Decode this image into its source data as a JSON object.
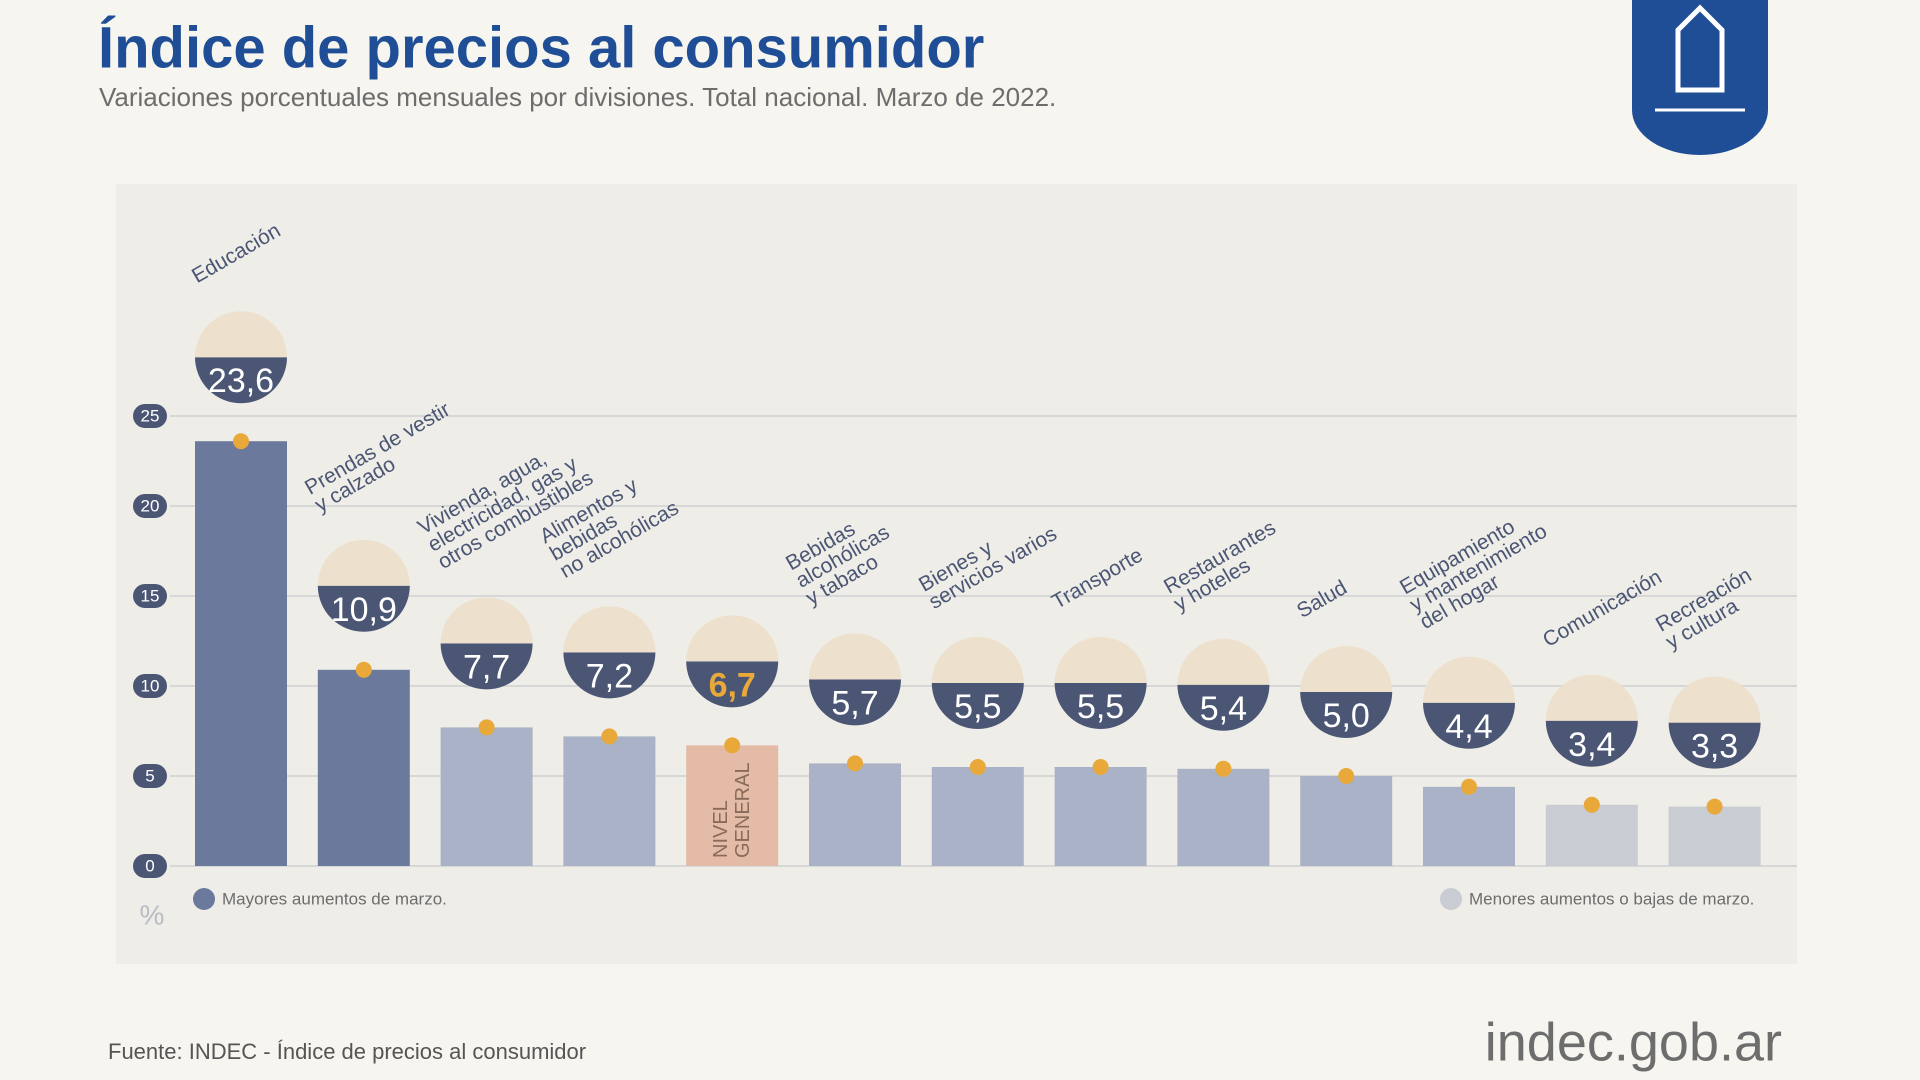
{
  "chart_data": {
    "type": "bar",
    "title": "Índice de precios al consumidor",
    "subtitle": "Variaciones porcentuales mensuales por divisiones. Total nacional. Marzo de 2022.",
    "categories": [
      "Educación",
      "Prendas de vestir\ny calzado",
      "Vivienda, agua,\nelectricidad, gas y\notros combustibles",
      "Alimentos y\nbebidas\nno alcohólicas",
      "NIVEL\nGENERAL",
      "Bebidas\nalcohólicas\ny tabaco",
      "Bienes y\nservicios varios",
      "Transporte",
      "Restaurantes\ny hoteles",
      "Salud",
      "Equipamiento\ny mantenimiento\ndel hogar",
      "Comunicación",
      "Recreación\ny cultura"
    ],
    "values": [
      23.6,
      10.9,
      7.7,
      7.2,
      6.7,
      5.7,
      5.5,
      5.5,
      5.4,
      5.0,
      4.4,
      3.4,
      3.3
    ],
    "value_labels": [
      "23,6",
      "10,9",
      "7,7",
      "7,2",
      "6,7",
      "5,7",
      "5,5",
      "5,5",
      "5,4",
      "5,0",
      "4,4",
      "3,4",
      "3,3"
    ],
    "colors": [
      "#6b7a9c",
      "#6b7a9c",
      "#a9b2c6",
      "#a9b2c6",
      "#e3bba7",
      "#a9b2c6",
      "#a9b2c6",
      "#a9b2c6",
      "#a9b2c6",
      "#a9b2c6",
      "#a9b2c6",
      "#c9ccd3",
      "#c9ccd3"
    ],
    "ylim": [
      0,
      25
    ],
    "yticks": [
      0,
      5,
      10,
      15,
      20,
      25
    ],
    "grid": true,
    "y_unit": "%",
    "legend": [
      {
        "name": "Mayores aumentos de marzo.",
        "color": "#6b7a9c"
      },
      {
        "name": "Menores aumentos o bajas de marzo.",
        "color": "#c9ccd3"
      }
    ],
    "source": "Fuente: INDEC - Índice de precios al consumidor",
    "brand": "indec.gob.ar"
  }
}
